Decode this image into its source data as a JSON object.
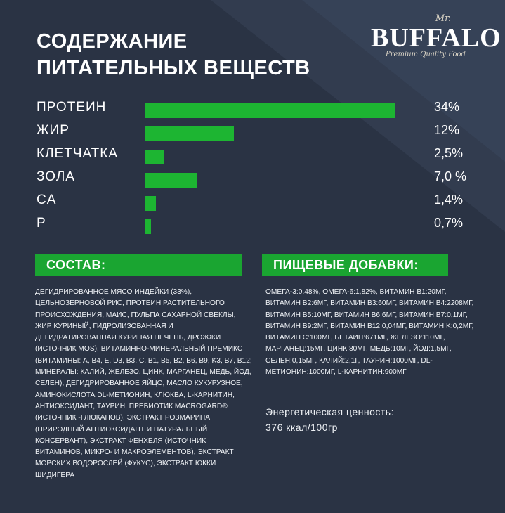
{
  "title_line1": "Содержание",
  "title_line2": "питательных веществ",
  "logo": {
    "mr": "Mr.",
    "name": "BUFFALO",
    "tagline": "Premium Quality Food"
  },
  "colors": {
    "background": "#2a3344",
    "accent": "#1db532"
  },
  "chart_data": {
    "type": "bar",
    "orientation": "horizontal",
    "title": "",
    "categories": [
      "ПРОТЕИН",
      "ЖИР",
      "КЛЕТЧАТКА",
      "ЗОЛА",
      "CA",
      "P"
    ],
    "values": [
      34,
      12,
      2.5,
      7.0,
      1.4,
      0.7
    ],
    "value_labels": [
      "34%",
      "12%",
      "2,5%",
      "7,0 %",
      "1,4%",
      "0,7%"
    ],
    "xlim": [
      0,
      34
    ],
    "unit": "%",
    "grid": false
  },
  "composition": {
    "heading": "СОСТАВ:",
    "text": "Дегидрированное мясо индейки (33%), цельнозерновой рис, протеин растительного происхождения, маис, пульпа сахарной свеклы, жир куриный, гидролизованная и дегидратированная куриная печень, дрожжи (источник MOS), витаминно-минеральный премикс (витамины: A, B4, E, D3, B3, C, B1, B5, B2, B6, B9, K3, B7, B12; минералы: калий, железо, цинк, марганец, медь, йод, селен), дегидрированное яйцо, масло кукурузное, аминокислота DL-метионин, клюква, L-карнитин, антиоксидант, таурин, пребиотик Macrogard® (источник -глюканов), экстракт розмарина (природный антиоксидант и натуральный консервант), экстракт фенхеля (источник витаминов, микро- и макроэлементов), экстракт морских водорослей (фукус), экстракт юкки шидигера"
  },
  "additives": {
    "heading": "ПИЩЕВЫЕ ДОБАВКИ:",
    "text": "Омега-3:0,48%, Омега-6:1,82%, витамин B1:20мг, витамин B2:6мг, витамин B3:60мг, витамин B4:2208мг, витамин B5:10мг, витамин B6:6мг, витамин B7:0,1мг, витамин B9:2мг, витамин B12:0,04мг, витамин K:0,2мг, витамин C:100мг, бетаин:671мг, железо:110мг, марганец:15мг, цинк:80мг, медь:10мг, йод:1,5мг, селен:0,15мг, калий:2,1г, таурин:1000мг, DL-метионин:1000мг, L-карнитин:900мг"
  },
  "energy": {
    "label": "Энергетическая ценность:",
    "value": "376 ккал/100гр"
  }
}
